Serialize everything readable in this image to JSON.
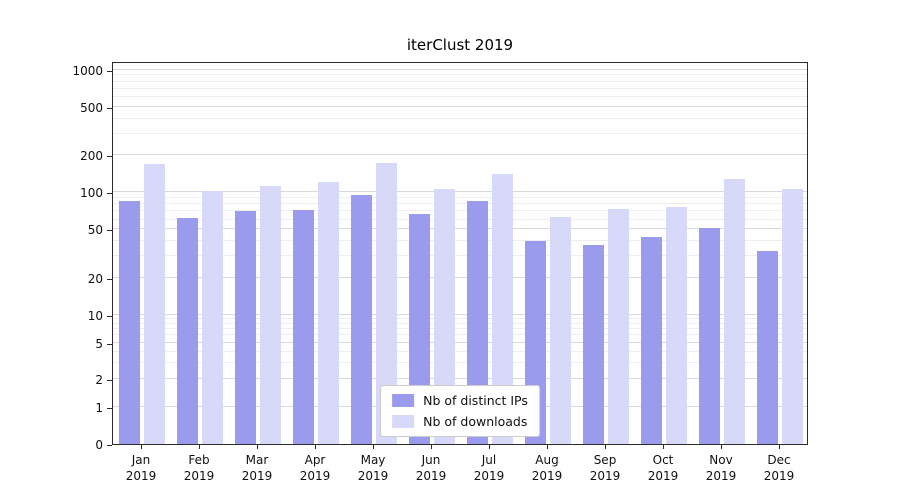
{
  "title": "iterClust 2019",
  "legend": {
    "items": [
      {
        "label": "Nb of distinct IPs",
        "color": "#9b9bee"
      },
      {
        "label": "Nb of downloads",
        "color": "#d8d8f8"
      }
    ]
  },
  "chart_data": {
    "type": "bar",
    "title": "iterClust 2019",
    "categories": [
      "Jan",
      "Feb",
      "Mar",
      "Apr",
      "May",
      "Jun",
      "Jul",
      "Aug",
      "Sep",
      "Oct",
      "Nov",
      "Dec"
    ],
    "year_label": "2019",
    "series": [
      {
        "name": "Nb of distinct IPs",
        "color": "#9b9bee",
        "values": [
          85,
          62,
          70,
          72,
          95,
          67,
          85,
          40,
          37,
          43,
          51,
          33
        ]
      },
      {
        "name": "Nb of downloads",
        "color": "#d8d8f8",
        "values": [
          170,
          103,
          113,
          122,
          175,
          106,
          140,
          63,
          73,
          76,
          128,
          107
        ]
      }
    ],
    "yscale": "symlog",
    "ylim": [
      0,
      1000
    ],
    "yticks": [
      0,
      1,
      2,
      5,
      10,
      20,
      50,
      100,
      200,
      500,
      1000
    ],
    "grid": true,
    "legend_position": "lower center"
  }
}
